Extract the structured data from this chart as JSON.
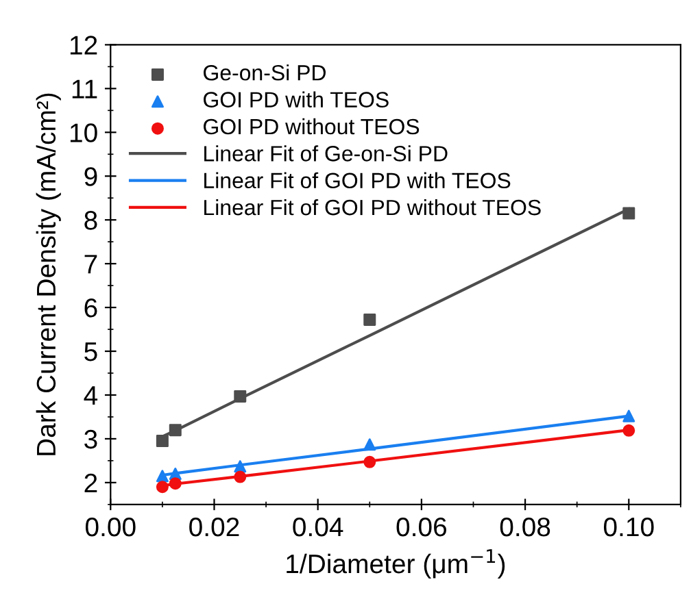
{
  "chart_data": {
    "type": "scatter",
    "xlabel": "1/Diameter (μm$^{−1}$)",
    "ylabel": "Dark Current Density (mA/cm²)",
    "x": [
      0.01,
      0.0125,
      0.025,
      0.05,
      0.1
    ],
    "series": [
      {
        "name": "Ge-on-Si PD",
        "color": "#4d4d4d",
        "marker": "square",
        "values": [
          2.95,
          3.2,
          3.97,
          5.72,
          8.15
        ]
      },
      {
        "name": "GOI PD with TEOS",
        "color": "#1a7ff0",
        "marker": "triangle",
        "values": [
          2.15,
          2.2,
          2.37,
          2.87,
          3.52
        ]
      },
      {
        "name": "GOI PD without TEOS",
        "color": "#f01010",
        "marker": "circle",
        "values": [
          1.9,
          1.98,
          2.13,
          2.47,
          3.19
        ]
      },
      {
        "name": "Linear Fit of Ge-on-Si PD",
        "type": "line",
        "color": "#4d4d4d",
        "values": [
          3.05,
          3.19,
          3.92,
          5.36,
          8.25
        ]
      },
      {
        "name": "Linear Fit of GOI PD with TEOS",
        "type": "line",
        "color": "#1a7ff0",
        "values": [
          2.17,
          2.21,
          2.4,
          2.77,
          3.52
        ]
      },
      {
        "name": "Linear Fit of GOI PD without TEOS",
        "type": "line",
        "color": "#f01010",
        "values": [
          1.93,
          1.97,
          2.14,
          2.49,
          3.2
        ]
      }
    ],
    "xlim": [
      0,
      0.11
    ],
    "xticks": [
      {
        "value": 0,
        "label": "0.00"
      },
      {
        "value": 0.02,
        "label": "0.02"
      },
      {
        "value": 0.04,
        "label": "0.04"
      },
      {
        "value": 0.06,
        "label": "0.06"
      },
      {
        "value": 0.08,
        "label": "0.08"
      },
      {
        "value": 0.1,
        "label": "0.10"
      }
    ],
    "ylim": [
      1.5,
      12
    ],
    "yticks": [
      2,
      3,
      4,
      5,
      6,
      7,
      8,
      9,
      10,
      11,
      12
    ],
    "legend": "top left",
    "grid": false
  }
}
